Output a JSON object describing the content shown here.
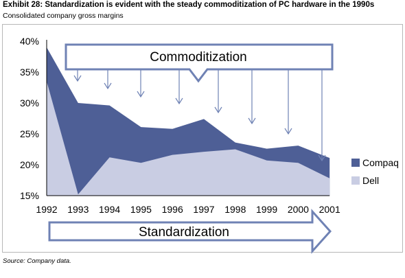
{
  "header": {
    "title": "Exhibit 28: Standardization is evident with the steady commoditization of PC hardware in the 1990s",
    "subtitle": "Consolidated company gross margins"
  },
  "footer": {
    "source": "Source: Company data."
  },
  "annotations": {
    "top_arrow_label": "Commoditization",
    "bottom_arrow_label": "Standardization"
  },
  "colors": {
    "compaq": "#4e5f96",
    "dell": "#c9cde3",
    "arrow": "#6f82b4"
  },
  "chart_data": {
    "type": "area",
    "title": "",
    "xlabel": "",
    "ylabel": "",
    "x": [
      "1992",
      "1993",
      "1994",
      "1995",
      "1996",
      "1997",
      "1998",
      "1999",
      "2000",
      "2001"
    ],
    "series": [
      {
        "name": "Compaq",
        "values": [
          39,
          30,
          29.6,
          26.1,
          25.8,
          27.4,
          23.6,
          22.6,
          23.1,
          21.1
        ]
      },
      {
        "name": "Dell",
        "values": [
          33.5,
          15.2,
          21.2,
          20.3,
          21.6,
          22.1,
          22.5,
          20.7,
          20.3,
          17.8
        ]
      }
    ],
    "ylim": [
      15,
      40
    ],
    "yticks": [
      "15%",
      "20%",
      "25%",
      "30%",
      "35%",
      "40%"
    ],
    "grid": false,
    "legend": "right"
  }
}
